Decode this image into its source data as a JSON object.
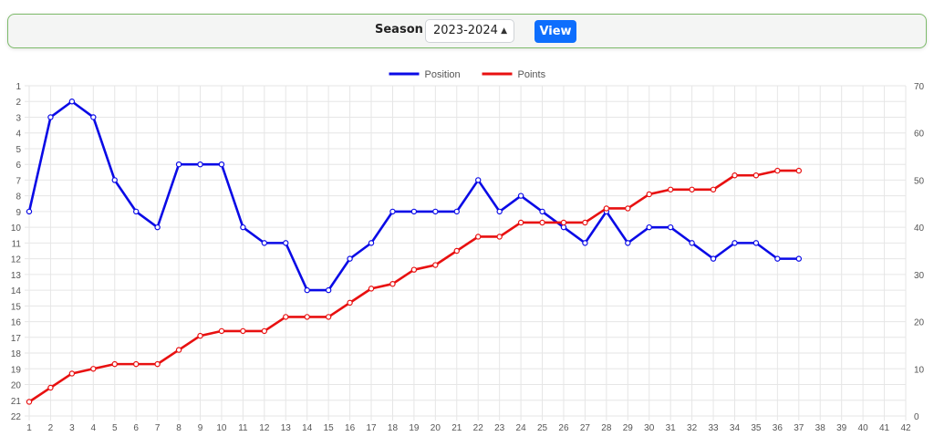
{
  "toolbar": {
    "season_label": "Season",
    "season_value": "2023-2024",
    "view_label": "View"
  },
  "chart_data": {
    "type": "line",
    "x": [
      1,
      2,
      3,
      4,
      5,
      6,
      7,
      8,
      9,
      10,
      11,
      12,
      13,
      14,
      15,
      16,
      17,
      18,
      19,
      20,
      21,
      22,
      23,
      24,
      25,
      26,
      27,
      28,
      29,
      30,
      31,
      32,
      33,
      34,
      35,
      36,
      37
    ],
    "xlim": [
      1,
      42
    ],
    "x_ticks": [
      1,
      2,
      3,
      4,
      5,
      6,
      7,
      8,
      9,
      10,
      11,
      12,
      13,
      14,
      15,
      16,
      17,
      18,
      19,
      20,
      21,
      22,
      23,
      24,
      25,
      26,
      27,
      28,
      29,
      30,
      31,
      32,
      33,
      34,
      35,
      36,
      37,
      38,
      39,
      40,
      41,
      42
    ],
    "legend_position": "top-center",
    "grid": true,
    "series": [
      {
        "name": "Position",
        "color": "#0a0ae6",
        "axis": "left",
        "values": [
          9,
          3,
          2,
          3,
          7,
          9,
          10,
          6,
          6,
          6,
          10,
          11,
          11,
          14,
          14,
          12,
          11,
          9,
          9,
          9,
          9,
          7,
          9,
          8,
          9,
          10,
          11,
          9,
          11,
          10,
          10,
          11,
          12,
          11,
          11,
          12,
          12
        ]
      },
      {
        "name": "Points",
        "color": "#e81010",
        "axis": "right",
        "values": [
          3,
          6,
          9,
          10,
          11,
          11,
          11,
          14,
          17,
          18,
          18,
          18,
          21,
          21,
          21,
          24,
          27,
          28,
          31,
          32,
          35,
          38,
          38,
          41,
          41,
          41,
          41,
          44,
          44,
          47,
          48,
          48,
          48,
          51,
          51,
          52,
          52
        ]
      }
    ],
    "y_left": {
      "reversed": true,
      "ylim": [
        1,
        22
      ],
      "ticks": [
        1,
        2,
        3,
        4,
        5,
        6,
        7,
        8,
        9,
        10,
        11,
        12,
        13,
        14,
        15,
        16,
        17,
        18,
        19,
        20,
        21,
        22
      ]
    },
    "y_right": {
      "ylim": [
        0,
        70
      ],
      "ticks": [
        0,
        10,
        20,
        30,
        40,
        50,
        60,
        70
      ]
    }
  }
}
